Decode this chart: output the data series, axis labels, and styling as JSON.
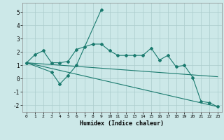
{
  "xlabel": "Humidex (Indice chaleur)",
  "background_color": "#cce8e8",
  "line_color": "#1a7a6e",
  "grid_color": "#aacccc",
  "xlim": [
    -0.5,
    23.5
  ],
  "ylim": [
    -2.5,
    5.7
  ],
  "xticks": [
    0,
    1,
    2,
    3,
    4,
    5,
    6,
    7,
    8,
    9,
    10,
    11,
    12,
    13,
    14,
    15,
    16,
    17,
    18,
    19,
    20,
    21,
    22,
    23
  ],
  "yticks": [
    -2,
    -1,
    0,
    1,
    2,
    3,
    4,
    5
  ],
  "line1_x": [
    0,
    1,
    2,
    3,
    4,
    5,
    6,
    7,
    8,
    9,
    10,
    11,
    12,
    13,
    14,
    15,
    16,
    17,
    18,
    19,
    20,
    21,
    22,
    23
  ],
  "line1_y": [
    1.2,
    1.8,
    2.1,
    1.2,
    1.2,
    1.3,
    2.2,
    2.4,
    2.6,
    2.6,
    2.1,
    1.75,
    1.75,
    1.75,
    1.75,
    2.3,
    1.4,
    1.75,
    0.9,
    1.0,
    0.1,
    -1.7,
    -1.8,
    -2.1
  ],
  "line2_x": [
    0,
    3,
    4,
    5,
    6,
    9
  ],
  "line2_y": [
    1.2,
    0.5,
    -0.4,
    0.25,
    1.0,
    5.2
  ],
  "line3_x": [
    0,
    23
  ],
  "line3_y": [
    1.2,
    -2.1
  ],
  "line4_x": [
    0,
    23
  ],
  "line4_y": [
    1.2,
    0.15
  ]
}
